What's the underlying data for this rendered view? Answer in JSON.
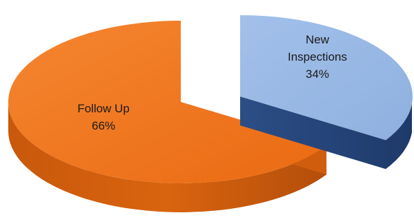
{
  "chart_data": {
    "type": "pie",
    "style": "3d-exploded",
    "title": "",
    "slices": [
      {
        "label": "Follow Up",
        "value_label": "66%",
        "value": 66,
        "color": "#F1751D",
        "side_color": "#C85A10"
      },
      {
        "label": "New Inspections",
        "value_label": "34%",
        "value": 34,
        "color": "#95B5E2",
        "side_color": "#26457A"
      }
    ],
    "legend": "none",
    "data_labels": "inside-slices"
  }
}
